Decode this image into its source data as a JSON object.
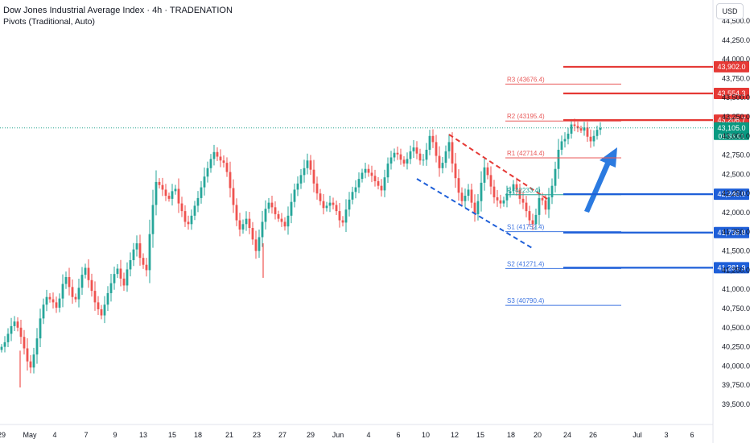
{
  "header": {
    "title": "Dow Jones Industrial Average Index · 4h · TRADENATION",
    "subtitle": "Pivots (Traditional, Auto)"
  },
  "currency_label": "USD",
  "colors": {
    "up": "#26a69a",
    "down": "#ef5350",
    "resistance": "#e53935",
    "support": "#1e5fd8",
    "arrow": "#2b7ae0",
    "last_price": "#089981"
  },
  "chart_data": {
    "type": "candlestick",
    "y_ticks": [
      "44,500.0",
      "44,250.0",
      "44,000.0",
      "43,750.0",
      "43,500.0",
      "43,250.0",
      "43,000.0",
      "42,750.0",
      "42,500.0",
      "42,250.0",
      "42,000.0",
      "41,750.0",
      "41,500.0",
      "41,250.0",
      "41,000.0",
      "40,750.0",
      "40,500.0",
      "40,250.0",
      "40,000.0",
      "39,750.0",
      "39,500.0"
    ],
    "y_tick_values": [
      44500,
      44250,
      44000,
      43750,
      43500,
      43250,
      43000,
      42750,
      42500,
      42250,
      42000,
      41750,
      41500,
      41250,
      41000,
      40750,
      40500,
      40250,
      40000,
      39750,
      39500
    ],
    "x_ticks": [
      "29",
      "May",
      "4",
      "7",
      "9",
      "13",
      "15",
      "18",
      "21",
      "23",
      "27",
      "29",
      "Jun",
      "4",
      "6",
      "10",
      "12",
      "15",
      "18",
      "20",
      "24",
      "26",
      "Jul",
      "3",
      "6"
    ],
    "ylim": [
      39400,
      44730
    ],
    "pivots": [
      {
        "label": "R3 (43676.4)",
        "value": 43676.4,
        "type": "resistance"
      },
      {
        "label": "R2 (43195.4)",
        "value": 43195.4,
        "type": "resistance"
      },
      {
        "label": "R1 (42714.4)",
        "value": 42714.4,
        "type": "resistance"
      },
      {
        "label": "P (42233.4)",
        "value": 42233.4,
        "type": "pivot"
      },
      {
        "label": "S1 (41752.4)",
        "value": 41752.4,
        "type": "support"
      },
      {
        "label": "S2 (41271.4)",
        "value": 41271.4,
        "type": "support"
      },
      {
        "label": "S3 (40790.4)",
        "value": 40790.4,
        "type": "support"
      }
    ],
    "price_levels": [
      {
        "label": "43,902.0",
        "value": 43902.0,
        "type": "resistance"
      },
      {
        "label": "43,554.3",
        "value": 43554.3,
        "type": "resistance"
      },
      {
        "label": "43,206.7",
        "value": 43206.7,
        "type": "resistance"
      },
      {
        "label": "42,240.0",
        "value": 42240.0,
        "type": "support"
      },
      {
        "label": "41,739.8",
        "value": 41739.8,
        "type": "support"
      },
      {
        "label": "41,281.9",
        "value": 41281.9,
        "type": "support"
      }
    ],
    "last_price": {
      "label": "43,105.0",
      "value": 43105.0,
      "countdown": "01:55:01"
    },
    "closes": [
      40250,
      40310,
      40420,
      40520,
      40580,
      40500,
      40380,
      40230,
      40060,
      39980,
      40150,
      40360,
      40620,
      40800,
      40900,
      40870,
      40830,
      40760,
      40880,
      41070,
      41160,
      41030,
      40900,
      40870,
      41020,
      41190,
      41280,
      41120,
      40980,
      40830,
      40740,
      40660,
      40800,
      40950,
      41080,
      41200,
      41270,
      41140,
      41050,
      41260,
      41380,
      41520,
      41600,
      41410,
      41320,
      41250,
      41720,
      42100,
      42400,
      42360,
      42300,
      42220,
      42180,
      42280,
      42310,
      42120,
      42020,
      41880,
      41850,
      41960,
      42090,
      42190,
      42330,
      42470,
      42580,
      42700,
      42790,
      42730,
      42680,
      42650,
      42530,
      42320,
      42100,
      41900,
      41780,
      41850,
      41920,
      41800,
      41650,
      41500,
      41680,
      41880,
      42050,
      42130,
      42070,
      41980,
      41920,
      41880,
      41820,
      41960,
      42140,
      42300,
      42380,
      42490,
      42580,
      42680,
      42560,
      42380,
      42250,
      42150,
      42060,
      42090,
      42130,
      42100,
      42020,
      41900,
      41870,
      42040,
      42170,
      42270,
      42330,
      42440,
      42520,
      42570,
      42520,
      42480,
      42410,
      42350,
      42290,
      42460,
      42640,
      42720,
      42780,
      42760,
      42690,
      42640,
      42700,
      42800,
      42850,
      42770,
      42680,
      42690,
      42820,
      43000,
      42920,
      42740,
      42580,
      42650,
      42800,
      42920,
      42640,
      42450,
      42260,
      42150,
      42220,
      42300,
      42130,
      41980,
      42150,
      42390,
      42590,
      42490,
      42340,
      42200,
      42160,
      42120,
      42160,
      42250,
      42280,
      42370,
      42300,
      42180,
      42130,
      42020,
      41900,
      41850,
      41970,
      42190,
      42160,
      42040,
      42200,
      42350,
      42570,
      42820,
      42930,
      42960,
      43030,
      43150,
      43130,
      43100,
      43070,
      43110,
      42990,
      42930,
      43000,
      43080,
      43105
    ]
  }
}
